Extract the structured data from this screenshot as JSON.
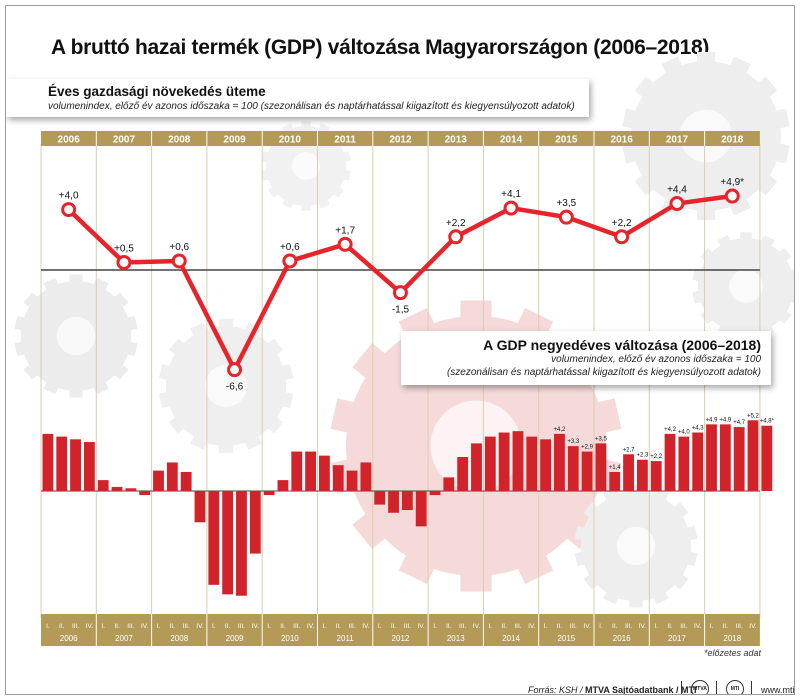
{
  "title": "A bruttó hazai termék (GDP) változása Magyarországon (2006–2018)",
  "annual_panel": {
    "title": "Éves gazdasági növekedés üteme",
    "subtitle": "volumenindex, előző év azonos időszaka = 100 (szezonálisan és naptárhatással kiigazított és kiegyensúlyozott adatok)"
  },
  "quarterly_panel": {
    "title": "A GDP negyedéves változása (2006–2018)",
    "subtitle_line1": "volumenindex, előző év azonos időszaka = 100",
    "subtitle_line2": "(szezonálisan és naptárhatással kiigazított és kiegyensúlyozott adatok)"
  },
  "prelim_note": "*előzetes adat",
  "footer": {
    "source_prefix": "Forrás: KSH / ",
    "source_bold": "MTVA Sajtóadatbank / MTI",
    "logo1": "MTVA",
    "logo2": "MTI",
    "website": "www.mti.hu"
  },
  "colors": {
    "line": "#e8242b",
    "bar": "#d2232a",
    "year_band": "#b39a57",
    "baseline": "#444444"
  },
  "chart_data": [
    {
      "type": "line",
      "categories": [
        "2006",
        "2007",
        "2008",
        "2009",
        "2010",
        "2011",
        "2012",
        "2013",
        "2014",
        "2015",
        "2016",
        "2017",
        "2018"
      ],
      "values": [
        4.0,
        0.5,
        0.6,
        -6.6,
        0.6,
        1.7,
        -1.5,
        2.2,
        4.1,
        3.5,
        2.2,
        4.4,
        4.9
      ],
      "labels": [
        "+4,0",
        "+0,5",
        "+0,6",
        "-6,6",
        "+0,6",
        "+1,7",
        "-1,5",
        "+2,2",
        "+4,1",
        "+3,5",
        "+2,2",
        "+4,4",
        "+4,9*"
      ]
    },
    {
      "type": "bar",
      "years": [
        "2006",
        "2007",
        "2008",
        "2009",
        "2010",
        "2011",
        "2012",
        "2013",
        "2014",
        "2015",
        "2016",
        "2017",
        "2018"
      ],
      "quarter_labels": [
        "I.",
        "II.",
        "III.",
        "IV."
      ],
      "values": [
        4.2,
        4.0,
        3.8,
        3.6,
        0.8,
        0.3,
        0.2,
        -0.3,
        1.5,
        2.1,
        1.4,
        -2.3,
        -6.9,
        -7.6,
        -7.7,
        -4.6,
        -0.3,
        0.8,
        2.9,
        2.9,
        2.6,
        1.9,
        1.5,
        2.1,
        -1.0,
        -1.6,
        -1.4,
        -2.6,
        -0.3,
        1.0,
        2.5,
        3.5,
        4.0,
        4.3,
        4.4,
        4.0,
        3.8,
        4.2,
        3.3,
        2.9,
        3.5,
        1.4,
        2.7,
        2.3,
        2.2,
        4.2,
        4.0,
        4.3,
        4.9,
        4.9,
        4.7,
        5.2,
        4.8
      ],
      "data_labels": [
        "",
        "",
        "",
        "",
        "",
        "",
        "",
        "",
        "",
        "",
        "",
        "",
        "",
        "",
        "",
        "",
        "",
        "",
        "",
        "",
        "",
        "",
        "",
        "",
        "",
        "",
        "",
        "",
        "",
        "",
        "",
        "",
        "",
        "",
        "",
        "",
        "",
        "+4,2",
        "+3,3",
        "+2,9",
        "+3,5",
        "+1,4",
        "+2,7",
        "+2,3",
        "+2,2",
        "+4,2",
        "+4,0",
        "+4,3",
        "+4,9",
        "+4,9",
        "+4,7",
        "+5,2",
        "+4,8*"
      ]
    }
  ]
}
